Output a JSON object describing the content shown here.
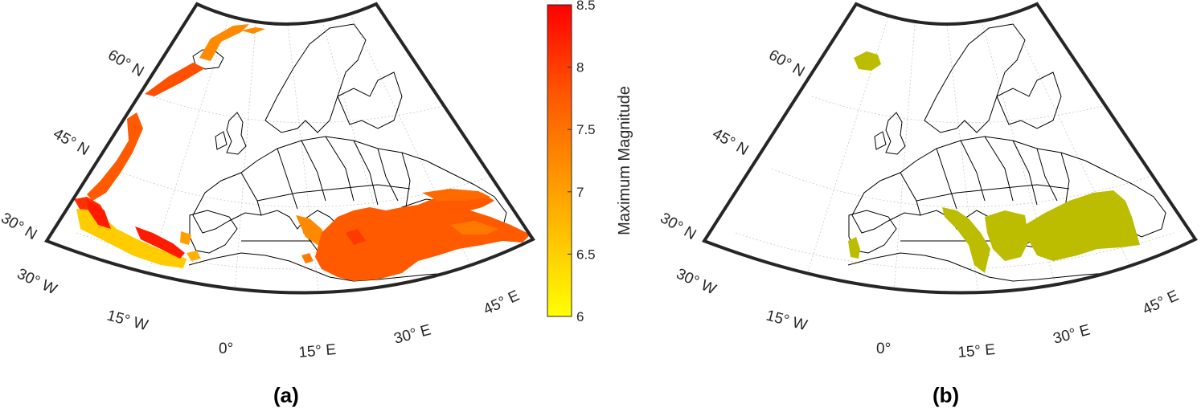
{
  "panels": [
    {
      "label": "(a)",
      "lat_labels": [
        "60° N",
        "45° N",
        "30° N"
      ],
      "lon_labels": [
        "30° W",
        "15° W",
        "0°",
        "15° E",
        "30° E",
        "45° E"
      ]
    },
    {
      "label": "(b)",
      "lat_labels": [
        "60° N",
        "45° N",
        "30° N"
      ],
      "lon_labels": [
        "30° W",
        "15° W",
        "0°",
        "15° E",
        "30° E",
        "45° E"
      ]
    }
  ],
  "colorbar": {
    "title": "Maximum Magnitude",
    "min": 6,
    "max": 8.5,
    "ticks": [
      "8.5",
      "8",
      "7.5",
      "7",
      "6.5",
      "6"
    ],
    "colors": [
      "#ffff00",
      "#ff0000"
    ]
  },
  "colors": {
    "zones_a": "#ff5a00",
    "zones_b": "#bcbc00"
  }
}
